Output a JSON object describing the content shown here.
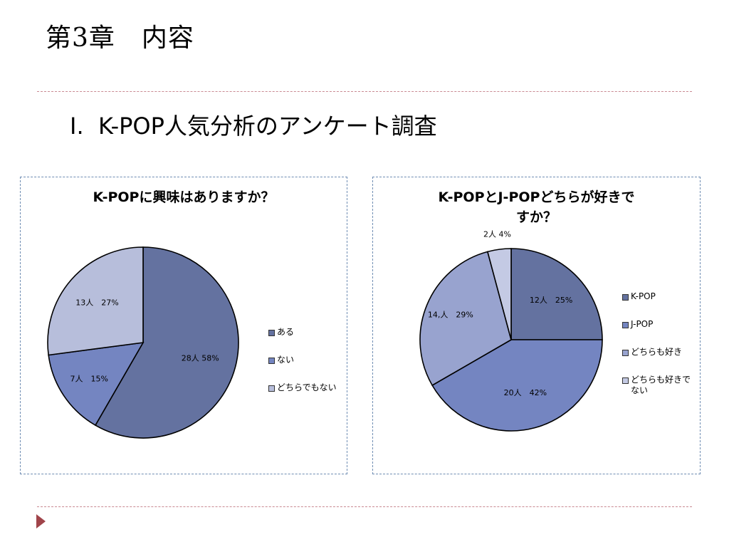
{
  "slide": {
    "title": "第3章　内容",
    "heading": "I.  K-POP人気分析のアンケート調査"
  },
  "chart_data": [
    {
      "type": "pie",
      "title": "K-POPに興味はありますか？",
      "slices": [
        {
          "name": "ある",
          "count": 28,
          "percent": 58,
          "label": "28人 58%",
          "color": "#6472a0"
        },
        {
          "name": "ない",
          "count": 7,
          "percent": 15,
          "label": "7人　15%",
          "color": "#7485c1"
        },
        {
          "name": "どちらでもない",
          "count": 13,
          "percent": 27,
          "label": "13人　27%",
          "color": "#b7bedb"
        }
      ]
    },
    {
      "type": "pie",
      "title_lines": [
        "K-POPとJ-POPどちらが好きで",
        "すか？"
      ],
      "slices": [
        {
          "name": "K-POP",
          "count": 12,
          "percent": 25,
          "label": "12人　25%",
          "color": "#6472a0"
        },
        {
          "name": "J-POP",
          "count": 20,
          "percent": 42,
          "label": "20人　42%",
          "color": "#7485c1"
        },
        {
          "name": "どちらも好き",
          "count": 14,
          "percent": 29,
          "label": "14,人　29%",
          "color": "#98a3cf"
        },
        {
          "name_lines": [
            "どちらも好きで",
            "ない"
          ],
          "count": 2,
          "percent": 4,
          "label": "2人 4%",
          "color": "#c4cae4"
        }
      ]
    }
  ]
}
